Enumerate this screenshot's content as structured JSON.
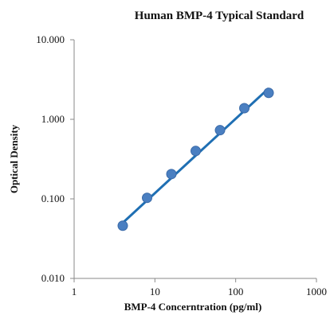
{
  "chart_data": {
    "type": "scatter",
    "title": "Human BMP-4 Typical Standard",
    "xlabel": "BMP-4 Concerntration (pg/ml)",
    "ylabel": "Optical Density",
    "x_scale": "log",
    "y_scale": "log",
    "xlim": [
      1,
      1000
    ],
    "ylim": [
      0.01,
      10
    ],
    "x_ticks": [
      "1",
      "10",
      "100",
      "1000"
    ],
    "y_ticks": [
      "0.010",
      "0.100",
      "1.000",
      "10.000"
    ],
    "grid": false,
    "legend": "none",
    "series": [
      {
        "x": [
          4,
          8,
          16,
          32,
          64,
          128,
          256
        ],
        "y": [
          0.046,
          0.103,
          0.205,
          0.4,
          0.73,
          1.38,
          2.15
        ],
        "color": "#4a7fc1"
      }
    ],
    "trendline": {
      "x": [
        4,
        256
      ],
      "y": [
        0.05,
        2.45
      ],
      "color": "#1f6fb3"
    }
  }
}
